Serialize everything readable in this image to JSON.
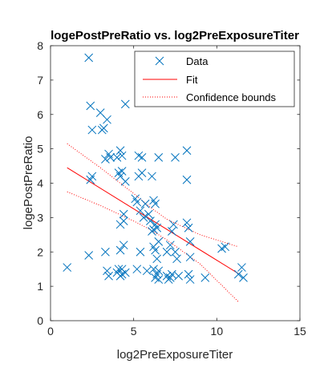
{
  "chart_data": {
    "type": "scatter",
    "title": "logePostPreRatio vs. log2PreExposureTiter",
    "xlabel": "log2PreExposureTiter",
    "ylabel": "logePostPreRatio",
    "xlim": [
      0,
      15
    ],
    "ylim": [
      0,
      8
    ],
    "xticks": [
      "0",
      "5",
      "10",
      "15"
    ],
    "yticks": [
      "0",
      "1",
      "2",
      "3",
      "4",
      "5",
      "6",
      "7",
      "8"
    ],
    "grid": false,
    "legend_position": "top-right",
    "series": [
      {
        "name": "Data",
        "marker": "x",
        "color": "#0072BD",
        "points": [
          [
            1.0,
            1.55
          ],
          [
            2.3,
            7.65
          ],
          [
            2.3,
            1.9
          ],
          [
            2.4,
            6.25
          ],
          [
            2.4,
            4.1
          ],
          [
            2.5,
            4.2
          ],
          [
            2.5,
            5.55
          ],
          [
            3.0,
            6.05
          ],
          [
            3.1,
            5.55
          ],
          [
            3.2,
            5.6
          ],
          [
            3.3,
            4.7
          ],
          [
            3.4,
            5.85
          ],
          [
            3.3,
            2.0
          ],
          [
            3.4,
            1.45
          ],
          [
            3.5,
            4.85
          ],
          [
            3.5,
            1.3
          ],
          [
            3.6,
            4.75
          ],
          [
            4.0,
            4.75
          ],
          [
            4.0,
            1.4
          ],
          [
            4.1,
            1.5
          ],
          [
            4.1,
            4.3
          ],
          [
            4.2,
            4.95
          ],
          [
            4.2,
            4.2
          ],
          [
            4.2,
            2.8
          ],
          [
            4.2,
            2.05
          ],
          [
            4.2,
            1.3
          ],
          [
            4.3,
            4.8
          ],
          [
            4.3,
            4.35
          ],
          [
            4.3,
            1.5
          ],
          [
            4.3,
            1.35
          ],
          [
            4.4,
            3.1
          ],
          [
            4.4,
            2.9
          ],
          [
            4.4,
            2.2
          ],
          [
            4.5,
            6.3
          ],
          [
            4.5,
            4.05
          ],
          [
            4.5,
            1.4
          ],
          [
            5.1,
            3.55
          ],
          [
            5.2,
            3.45
          ],
          [
            5.2,
            1.5
          ],
          [
            5.3,
            4.8
          ],
          [
            5.3,
            4.2
          ],
          [
            5.4,
            3.2
          ],
          [
            5.4,
            2.0
          ],
          [
            5.5,
            4.3
          ],
          [
            5.5,
            4.75
          ],
          [
            5.6,
            3.0
          ],
          [
            5.7,
            3.4
          ],
          [
            5.8,
            1.45
          ],
          [
            5.9,
            3.1
          ],
          [
            6.0,
            2.9
          ],
          [
            6.1,
            4.2
          ],
          [
            6.1,
            2.6
          ],
          [
            6.2,
            3.5
          ],
          [
            6.2,
            2.65
          ],
          [
            6.2,
            2.15
          ],
          [
            6.2,
            1.5
          ],
          [
            6.3,
            3.4
          ],
          [
            6.3,
            2.8
          ],
          [
            6.3,
            2.05
          ],
          [
            6.3,
            1.25
          ],
          [
            6.4,
            2.7
          ],
          [
            6.4,
            1.8
          ],
          [
            6.4,
            1.35
          ],
          [
            6.5,
            4.75
          ],
          [
            6.5,
            2.3
          ],
          [
            6.5,
            1.45
          ],
          [
            6.5,
            1.2
          ],
          [
            7.0,
            2.0
          ],
          [
            7.0,
            1.3
          ],
          [
            7.1,
            1.2
          ],
          [
            7.2,
            2.2
          ],
          [
            7.2,
            1.25
          ],
          [
            7.3,
            2.6
          ],
          [
            7.3,
            1.35
          ],
          [
            7.4,
            2.8
          ],
          [
            7.5,
            4.75
          ],
          [
            7.5,
            2.0
          ],
          [
            7.6,
            1.8
          ],
          [
            7.7,
            1.3
          ],
          [
            8.2,
            4.95
          ],
          [
            8.2,
            4.1
          ],
          [
            8.2,
            2.85
          ],
          [
            8.3,
            2.7
          ],
          [
            8.3,
            1.35
          ],
          [
            8.4,
            2.3
          ],
          [
            8.4,
            1.85
          ],
          [
            8.4,
            1.2
          ],
          [
            9.3,
            1.25
          ],
          [
            10.3,
            2.1
          ],
          [
            10.5,
            2.15
          ],
          [
            11.3,
            1.35
          ],
          [
            11.5,
            1.55
          ],
          [
            11.6,
            1.25
          ]
        ]
      },
      {
        "name": "Fit",
        "style": "solid",
        "color": "#FF0000",
        "points": [
          [
            1.0,
            4.45
          ],
          [
            11.3,
            1.37
          ]
        ]
      },
      {
        "name": "Confidence bounds",
        "style": "dotted",
        "color": "#FF0000",
        "upper": [
          [
            1.0,
            5.15
          ],
          [
            3.0,
            4.45
          ],
          [
            5.0,
            3.7
          ],
          [
            6.0,
            3.3
          ],
          [
            7.0,
            2.95
          ],
          [
            9.0,
            2.5
          ],
          [
            11.3,
            2.15
          ]
        ],
        "lower": [
          [
            1.0,
            3.75
          ],
          [
            3.0,
            3.35
          ],
          [
            5.0,
            2.9
          ],
          [
            6.0,
            2.65
          ],
          [
            7.0,
            2.35
          ],
          [
            9.0,
            1.65
          ],
          [
            11.3,
            0.55
          ]
        ]
      }
    ]
  }
}
